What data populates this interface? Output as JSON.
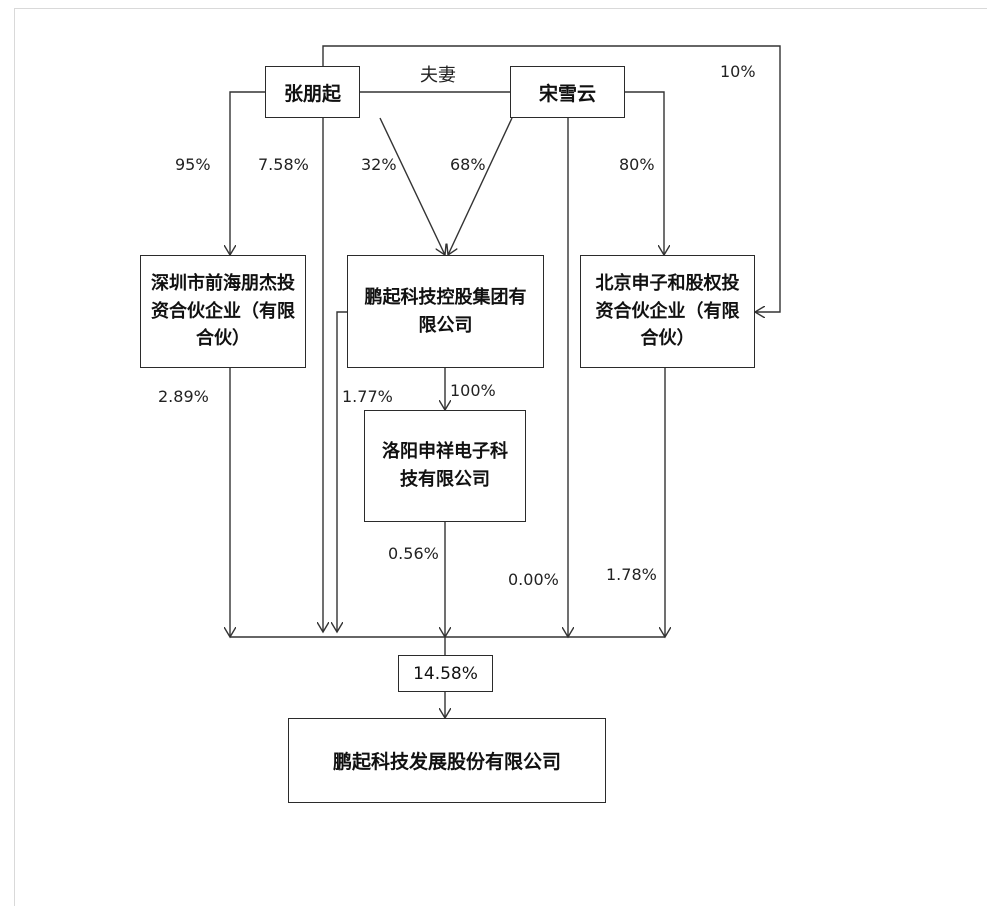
{
  "nodes": {
    "zhang": "张朋起",
    "song": "宋雪云",
    "spouse": "夫妻",
    "shenzhen": "深圳市前海朋杰投资合伙企业（有限合伙）",
    "pengqi_group": "鹏起科技控股集团有限公司",
    "beijing": "北京申子和股权投资合伙企业（有限合伙）",
    "luoyang": "洛阳申祥电子科技有限公司",
    "total": "14.58%",
    "target": "鹏起科技发展股份有限公司"
  },
  "edges": {
    "zhang_to_shenzhen": "95%",
    "zhang_to_target": "7.58%",
    "zhang_to_group": "32%",
    "song_to_group": "68%",
    "song_to_beijing": "80%",
    "zhang_to_beijing": "10%",
    "shenzhen_to_target": "2.89%",
    "group_to_target": "1.77%",
    "group_to_luoyang": "100%",
    "luoyang_to_target": "0.56%",
    "song_to_target": "0.00%",
    "beijing_to_target": "1.78%"
  }
}
